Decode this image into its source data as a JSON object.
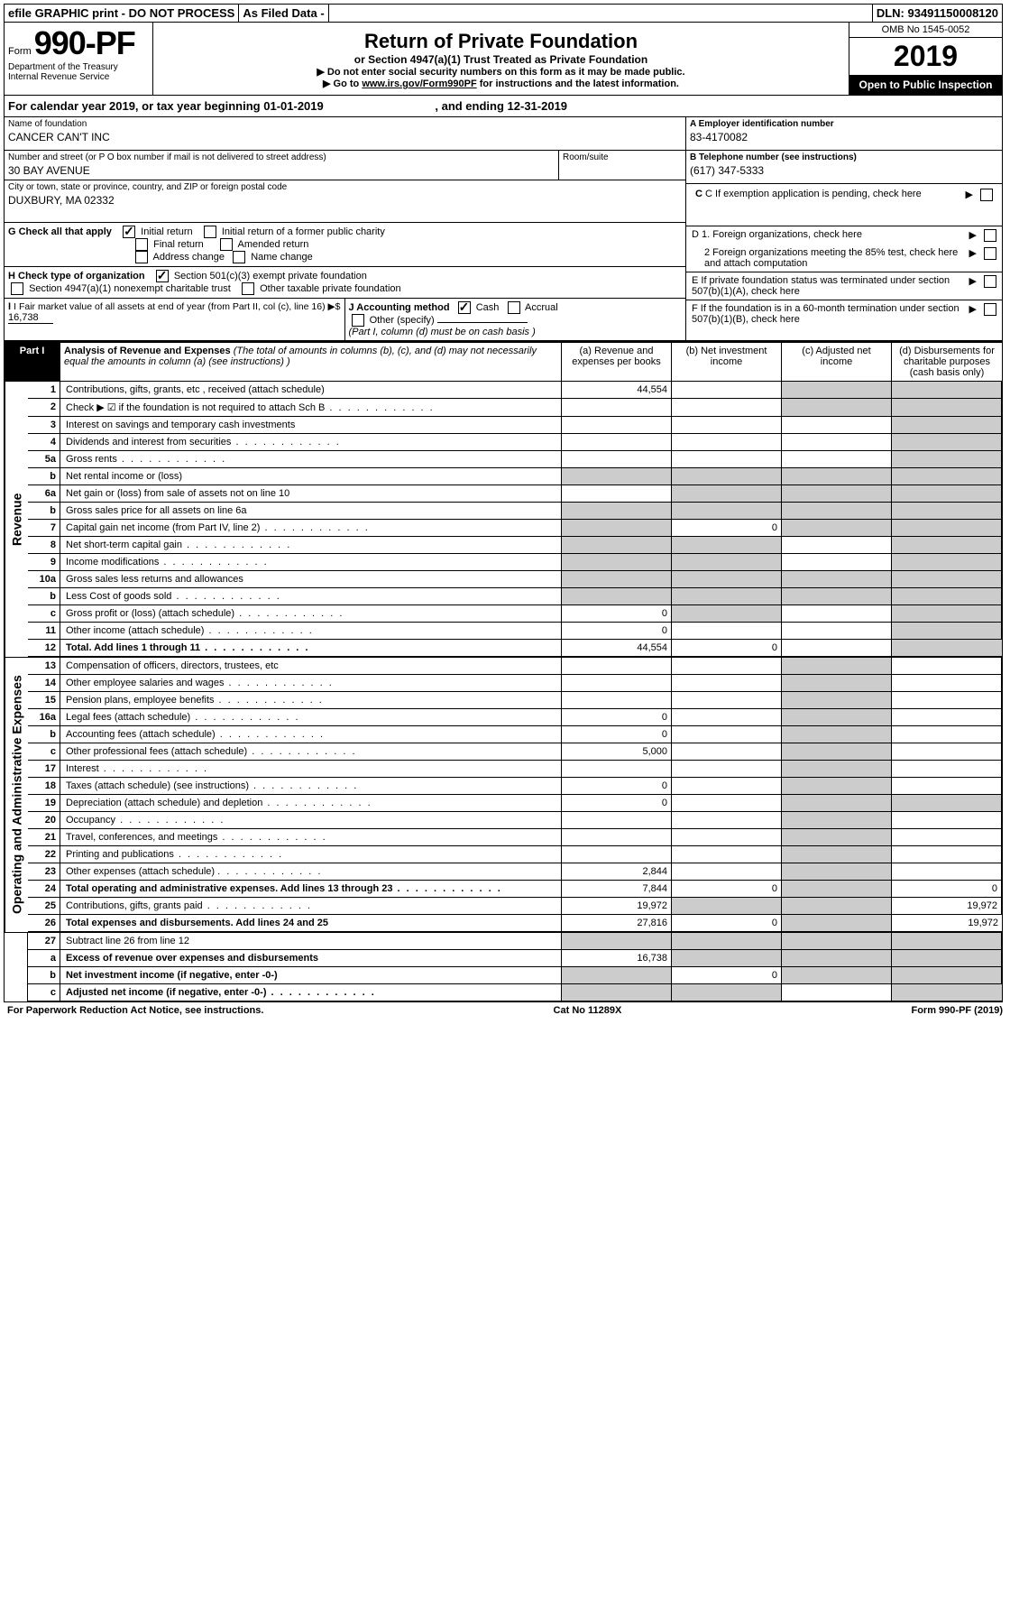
{
  "top": {
    "efile": "efile GRAPHIC print - DO NOT PROCESS",
    "asfiled": "As Filed Data -",
    "dln": "DLN: 93491150008120"
  },
  "header": {
    "form_prefix": "Form",
    "form_no": "990-PF",
    "dept": "Department of the Treasury",
    "irs": "Internal Revenue Service",
    "title": "Return of Private Foundation",
    "subtitle": "or Section 4947(a)(1) Trust Treated as Private Foundation",
    "instr1": "▶ Do not enter social security numbers on this form as it may be made public.",
    "instr2_pre": "▶ Go to ",
    "instr2_link": "www.irs.gov/Form990PF",
    "instr2_post": " for instructions and the latest information.",
    "omb": "OMB No 1545-0052",
    "year": "2019",
    "open": "Open to Public Inspection"
  },
  "calyear": {
    "pre": "For calendar year 2019, or tax year beginning ",
    "begin": "01-01-2019",
    "mid": " , and ending ",
    "end": "12-31-2019"
  },
  "info": {
    "name_lbl": "Name of foundation",
    "name": "CANCER CAN'T INC",
    "addr_lbl": "Number and street (or P O  box number if mail is not delivered to street address)",
    "addr": "30 BAY AVENUE",
    "room_lbl": "Room/suite",
    "city_lbl": "City or town, state or province, country, and ZIP or foreign postal code",
    "city": "DUXBURY, MA  02332",
    "a_lbl": "A Employer identification number",
    "a_val": "83-4170082",
    "b_lbl": "B Telephone number (see instructions)",
    "b_val": "(617) 347-5333",
    "c_lbl": "C If exemption application is pending, check here",
    "d1": "D 1. Foreign organizations, check here",
    "d2": "2 Foreign organizations meeting the 85% test, check here and attach computation",
    "e_lbl": "E  If private foundation status was terminated under section 507(b)(1)(A), check here",
    "f_lbl": "F  If the foundation is in a 60-month termination under section 507(b)(1)(B), check here"
  },
  "g": {
    "label": "G Check all that apply",
    "opts": [
      "Initial return",
      "Initial return of a former public charity",
      "Final return",
      "Amended return",
      "Address change",
      "Name change"
    ]
  },
  "h": {
    "label": "H Check type of organization",
    "opts": [
      "Section 501(c)(3) exempt private foundation",
      "Section 4947(a)(1) nonexempt charitable trust",
      "Other taxable private foundation"
    ]
  },
  "i": {
    "label": "I Fair market value of all assets at end of year (from Part II, col  (c), line 16) ▶$ ",
    "val": "16,738"
  },
  "j": {
    "label": "J Accounting method",
    "opts": [
      "Cash",
      "Accrual",
      "Other (specify)"
    ],
    "note": "(Part I, column (d) must be on cash basis )"
  },
  "part1": {
    "badge": "Part I",
    "title": "Analysis of Revenue and Expenses",
    "note": "(The total of amounts in columns (b), (c), and (d) may not necessarily equal the amounts in column (a) (see instructions) )",
    "col_a": "(a) Revenue and expenses per books",
    "col_b": "(b) Net investment income",
    "col_c": "(c) Adjusted net income",
    "col_d": "(d) Disbursements for charitable purposes (cash basis only)"
  },
  "sections": {
    "revenue": "Revenue",
    "expenses": "Operating and Administrative Expenses"
  },
  "rows": [
    {
      "n": "1",
      "d": "Contributions, gifts, grants, etc , received (attach schedule)",
      "a": "44,554",
      "cShade": true,
      "dShade": true
    },
    {
      "n": "2",
      "d": "Check ▶ ☑ if the foundation is not required to attach Sch B",
      "dots": true,
      "cShade": true,
      "dShade": true
    },
    {
      "n": "3",
      "d": "Interest on savings and temporary cash investments",
      "dShade": true
    },
    {
      "n": "4",
      "d": "Dividends and interest from securities",
      "dots": true,
      "dShade": true
    },
    {
      "n": "5a",
      "d": "Gross rents",
      "dots": true,
      "dShade": true
    },
    {
      "n": "b",
      "d": "Net rental income or (loss)",
      "aShade": true,
      "bShade": true,
      "cShade": true,
      "dShade": true
    },
    {
      "n": "6a",
      "d": "Net gain or (loss) from sale of assets not on line 10",
      "bShade": true,
      "cShade": true,
      "dShade": true
    },
    {
      "n": "b",
      "d": "Gross sales price for all assets on line 6a",
      "aShade": true,
      "bShade": true,
      "cShade": true,
      "dShade": true
    },
    {
      "n": "7",
      "d": "Capital gain net income (from Part IV, line 2)",
      "dots": true,
      "aShade": true,
      "b": "0",
      "cShade": true,
      "dShade": true
    },
    {
      "n": "8",
      "d": "Net short-term capital gain",
      "dots": true,
      "aShade": true,
      "bShade": true,
      "dShade": true
    },
    {
      "n": "9",
      "d": "Income modifications",
      "dots": true,
      "aShade": true,
      "bShade": true,
      "dShade": true
    },
    {
      "n": "10a",
      "d": "Gross sales less returns and allowances",
      "aShade": true,
      "bShade": true,
      "cShade": true,
      "dShade": true
    },
    {
      "n": "b",
      "d": "Less  Cost of goods sold",
      "dots": true,
      "aShade": true,
      "bShade": true,
      "cShade": true,
      "dShade": true
    },
    {
      "n": "c",
      "d": "Gross profit or (loss) (attach schedule)",
      "dots": true,
      "a": "0",
      "bShade": true,
      "dShade": true
    },
    {
      "n": "11",
      "d": "Other income (attach schedule)",
      "dots": true,
      "a": "0",
      "dShade": true
    },
    {
      "n": "12",
      "d": "Total. Add lines 1 through 11",
      "dots": true,
      "bold": true,
      "a": "44,554",
      "b": "0",
      "dShade": true
    }
  ],
  "erows": [
    {
      "n": "13",
      "d": "Compensation of officers, directors, trustees, etc",
      "cShade": true
    },
    {
      "n": "14",
      "d": "Other employee salaries and wages",
      "dots": true,
      "cShade": true
    },
    {
      "n": "15",
      "d": "Pension plans, employee benefits",
      "dots": true,
      "cShade": true
    },
    {
      "n": "16a",
      "d": "Legal fees (attach schedule)",
      "dots": true,
      "a": "0",
      "cShade": true
    },
    {
      "n": "b",
      "d": "Accounting fees (attach schedule)",
      "dots": true,
      "a": "0",
      "cShade": true
    },
    {
      "n": "c",
      "d": "Other professional fees (attach schedule)",
      "dots": true,
      "a": "5,000",
      "cShade": true
    },
    {
      "n": "17",
      "d": "Interest",
      "dots": true,
      "cShade": true
    },
    {
      "n": "18",
      "d": "Taxes (attach schedule) (see instructions)",
      "dots": true,
      "a": "0",
      "cShade": true
    },
    {
      "n": "19",
      "d": "Depreciation (attach schedule) and depletion",
      "dots": true,
      "a": "0",
      "cShade": true,
      "dShade": true
    },
    {
      "n": "20",
      "d": "Occupancy",
      "dots": true,
      "cShade": true
    },
    {
      "n": "21",
      "d": "Travel, conferences, and meetings",
      "dots": true,
      "cShade": true
    },
    {
      "n": "22",
      "d": "Printing and publications",
      "dots": true,
      "cShade": true
    },
    {
      "n": "23",
      "d": "Other expenses (attach schedule)",
      "dots": true,
      "a": "2,844",
      "icon": true,
      "cShade": true
    },
    {
      "n": "24",
      "d": "Total operating and administrative expenses. Add lines 13 through 23",
      "dots": true,
      "bold": true,
      "a": "7,844",
      "b": "0",
      "cShade": true,
      "dv": "0"
    },
    {
      "n": "25",
      "d": "Contributions, gifts, grants paid",
      "dots": true,
      "a": "19,972",
      "bShade": true,
      "cShade": true,
      "dv": "19,972"
    },
    {
      "n": "26",
      "d": "Total expenses and disbursements. Add lines 24 and 25",
      "bold": true,
      "a": "27,816",
      "b": "0",
      "cShade": true,
      "dv": "19,972"
    }
  ],
  "frows": [
    {
      "n": "27",
      "d": "Subtract line 26 from line 12",
      "aShade": true,
      "bShade": true,
      "cShade": true,
      "dShade": true
    },
    {
      "n": "a",
      "d": "Excess of revenue over expenses and disbursements",
      "bold": true,
      "a": "16,738",
      "bShade": true,
      "cShade": true,
      "dShade": true
    },
    {
      "n": "b",
      "d": "Net investment income (if negative, enter -0-)",
      "bold": true,
      "aShade": true,
      "b": "0",
      "cShade": true,
      "dShade": true
    },
    {
      "n": "c",
      "d": "Adjusted net income (if negative, enter -0-)",
      "bold": true,
      "dots": true,
      "aShade": true,
      "bShade": true,
      "dShade": true
    }
  ],
  "footer": {
    "left": "For Paperwork Reduction Act Notice, see instructions.",
    "mid": "Cat  No  11289X",
    "right": "Form 990-PF (2019)"
  }
}
